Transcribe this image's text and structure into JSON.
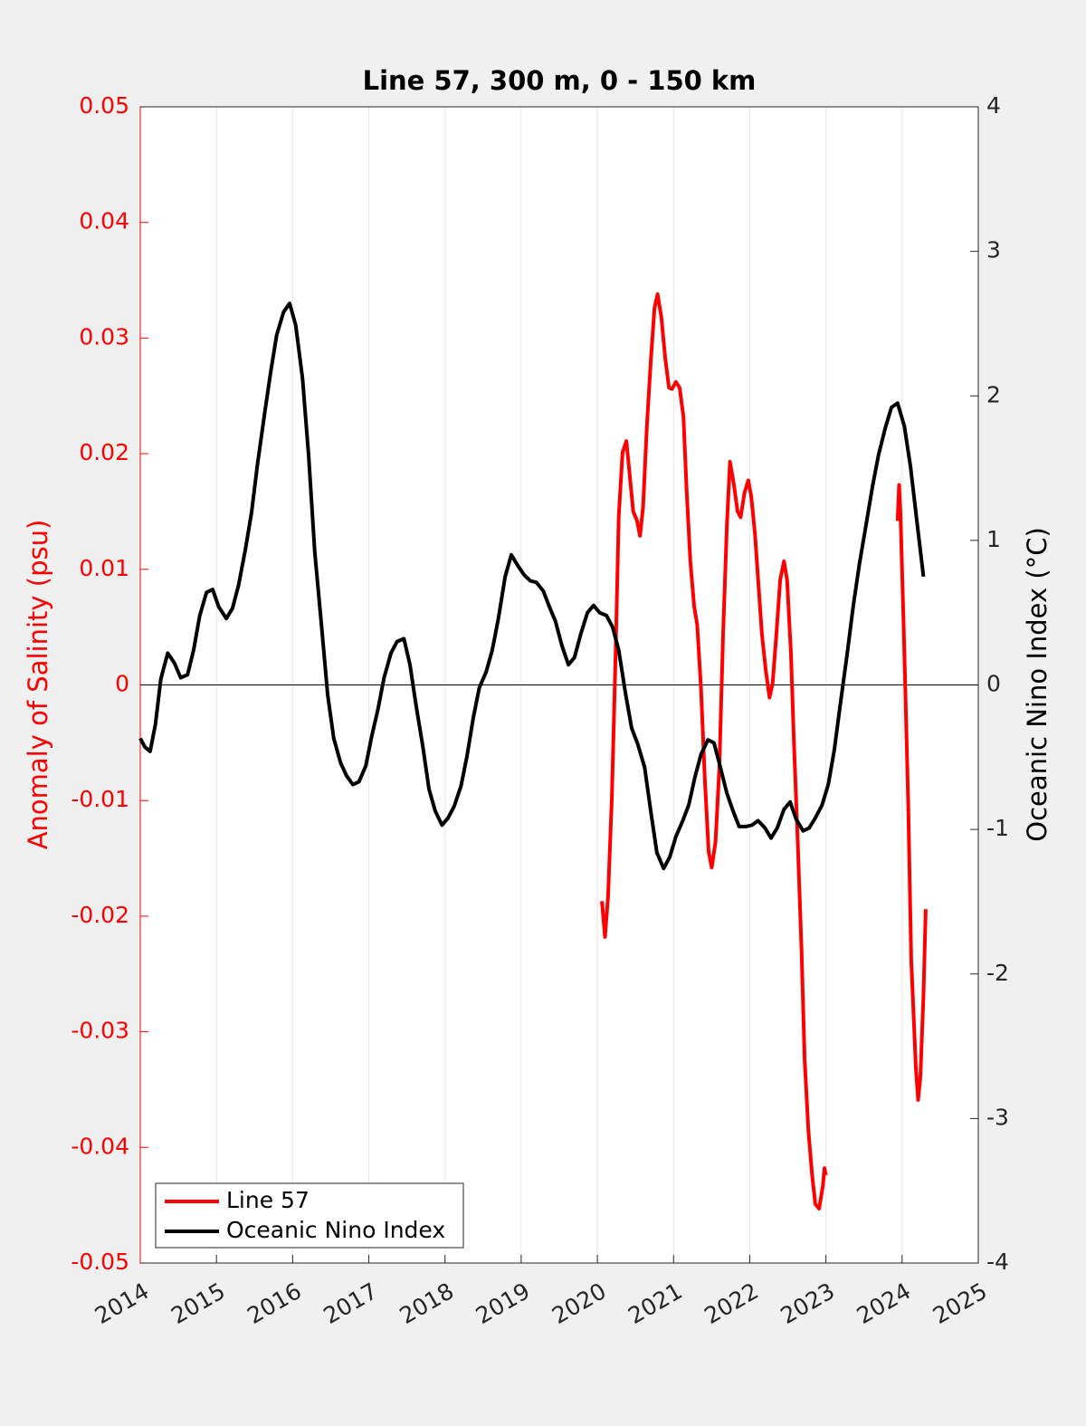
{
  "chart_data": {
    "type": "line",
    "title": "Line 57, 300 m, 0 - 150 km",
    "ylabel": "Anomaly of Salinity (psu)",
    "y2label": "Oceanic Nino Index (°C)",
    "yaxis_color": "#ff0000",
    "xlim": [
      2014,
      2025
    ],
    "xticks": [
      2014,
      2015,
      2016,
      2017,
      2018,
      2019,
      2020,
      2021,
      2022,
      2023,
      2024,
      2025
    ],
    "ylim": [
      -0.05,
      0.05
    ],
    "yticks": [
      -0.05,
      -0.04,
      -0.03,
      -0.02,
      -0.01,
      0,
      0.01,
      0.02,
      0.03,
      0.04,
      0.05
    ],
    "y2lim": [
      -4,
      4
    ],
    "y2ticks": [
      -4,
      -3,
      -2,
      -1,
      0,
      1,
      2,
      3,
      4
    ],
    "grid": "x",
    "zero_line": true,
    "legend": "lower left",
    "series": [
      {
        "name": "Line 57",
        "color": "#ff0000",
        "x": [
          2020.06,
          2020.1,
          2020.14,
          2020.19,
          2020.24,
          2020.28,
          2020.33,
          2020.38,
          2020.42,
          2020.47,
          2020.52,
          2020.56,
          2020.6,
          2020.65,
          2020.7,
          2020.75,
          2020.79,
          2020.84,
          2020.89,
          2020.94,
          2020.98,
          2021.03,
          2021.08,
          2021.13,
          2021.17,
          2021.22,
          2021.27,
          2021.31,
          2021.36,
          2021.41,
          2021.46,
          2021.5,
          2021.55,
          2021.6,
          2021.65,
          2021.7,
          2021.74,
          2021.79,
          2021.84,
          2021.88,
          2021.93,
          2021.98,
          2022.02,
          2022.07,
          2022.11,
          2022.16,
          2022.21,
          2022.26,
          2022.3,
          2022.35,
          2022.4,
          2022.45,
          2022.49,
          2022.54,
          2022.58,
          2022.63,
          2022.68,
          2022.72,
          2022.77,
          2022.82,
          2022.86,
          2022.91,
          2022.96,
          2022.98,
          2023.0,
          null,
          2023.94,
          2023.96,
          2023.98,
          2024.03,
          2024.08,
          2024.12,
          2024.18,
          2024.21,
          2024.24,
          2024.28,
          2024.31
        ],
        "values": [
          -0.0187,
          -0.0218,
          -0.0183,
          -0.0097,
          0.0029,
          0.0146,
          0.0201,
          0.0211,
          0.0185,
          0.015,
          0.0142,
          0.0129,
          0.0154,
          0.0224,
          0.0279,
          0.0326,
          0.0338,
          0.0318,
          0.0283,
          0.0257,
          0.0256,
          0.0262,
          0.0257,
          0.0232,
          0.017,
          0.0107,
          0.0068,
          0.0052,
          -0.0003,
          -0.0081,
          -0.0144,
          -0.0158,
          -0.0136,
          -0.0073,
          0.0044,
          0.0138,
          0.0193,
          0.0174,
          0.015,
          0.0145,
          0.0166,
          0.0177,
          0.0163,
          0.013,
          0.0091,
          0.0044,
          0.0013,
          -0.0011,
          0.0001,
          0.0044,
          0.0091,
          0.0107,
          0.0091,
          0.0029,
          -0.005,
          -0.0136,
          -0.023,
          -0.0324,
          -0.0386,
          -0.0425,
          -0.0449,
          -0.0453,
          -0.0433,
          -0.0418,
          -0.0424,
          null,
          0.0142,
          0.0173,
          0.0146,
          0.0029,
          -0.0104,
          -0.0238,
          -0.0331,
          -0.0359,
          -0.0339,
          -0.0269,
          -0.0194
        ]
      },
      {
        "name": "Oceanic Nino Index",
        "color": "#000000",
        "axis": "y2",
        "x": [
          2014.0,
          2014.06,
          2014.13,
          2014.2,
          2014.27,
          2014.36,
          2014.45,
          2014.53,
          2014.62,
          2014.7,
          2014.78,
          2014.87,
          2014.95,
          2015.03,
          2015.13,
          2015.21,
          2015.29,
          2015.38,
          2015.46,
          2015.54,
          2015.63,
          2015.71,
          2015.79,
          2015.88,
          2015.96,
          2016.04,
          2016.13,
          2016.21,
          2016.29,
          2016.38,
          2016.46,
          2016.54,
          2016.63,
          2016.71,
          2016.79,
          2016.87,
          2016.96,
          2017.04,
          2017.12,
          2017.2,
          2017.29,
          2017.37,
          2017.46,
          2017.54,
          2017.62,
          2017.71,
          2017.79,
          2017.87,
          2017.96,
          2018.04,
          2018.12,
          2018.21,
          2018.29,
          2018.37,
          2018.45,
          2018.54,
          2018.62,
          2018.7,
          2018.79,
          2018.87,
          2018.95,
          2019.04,
          2019.12,
          2019.2,
          2019.29,
          2019.37,
          2019.45,
          2019.53,
          2019.62,
          2019.7,
          2019.78,
          2019.87,
          2019.95,
          2020.03,
          2020.12,
          2020.2,
          2020.28,
          2020.37,
          2020.45,
          2020.53,
          2020.62,
          2020.7,
          2020.78,
          2020.87,
          2020.95,
          2021.03,
          2021.12,
          2021.2,
          2021.28,
          2021.36,
          2021.45,
          2021.53,
          2021.61,
          2021.7,
          2021.78,
          2021.86,
          2021.95,
          2022.03,
          2022.11,
          2022.2,
          2022.28,
          2022.36,
          2022.45,
          2022.53,
          2022.61,
          2022.7,
          2022.78,
          2022.86,
          2022.95,
          2023.03,
          2023.11,
          2023.19,
          2023.28,
          2023.36,
          2023.44,
          2023.53,
          2023.61,
          2023.69,
          2023.78,
          2023.86,
          2023.94,
          2024.03,
          2024.11,
          2024.19,
          2024.28
        ],
        "values": [
          -0.37,
          -0.43,
          -0.46,
          -0.27,
          0.04,
          0.22,
          0.15,
          0.05,
          0.07,
          0.24,
          0.48,
          0.64,
          0.66,
          0.54,
          0.46,
          0.53,
          0.69,
          0.94,
          1.19,
          1.53,
          1.87,
          2.16,
          2.42,
          2.58,
          2.64,
          2.49,
          2.12,
          1.59,
          0.92,
          0.4,
          -0.07,
          -0.37,
          -0.54,
          -0.63,
          -0.69,
          -0.67,
          -0.56,
          -0.35,
          -0.17,
          0.05,
          0.22,
          0.3,
          0.32,
          0.14,
          -0.14,
          -0.43,
          -0.72,
          -0.87,
          -0.97,
          -0.92,
          -0.84,
          -0.7,
          -0.49,
          -0.23,
          -0.02,
          0.09,
          0.24,
          0.46,
          0.75,
          0.9,
          0.83,
          0.76,
          0.72,
          0.71,
          0.65,
          0.54,
          0.44,
          0.28,
          0.14,
          0.19,
          0.35,
          0.5,
          0.55,
          0.5,
          0.48,
          0.4,
          0.24,
          -0.06,
          -0.3,
          -0.41,
          -0.57,
          -0.87,
          -1.16,
          -1.27,
          -1.19,
          -1.05,
          -0.94,
          -0.83,
          -0.64,
          -0.48,
          -0.38,
          -0.4,
          -0.56,
          -0.75,
          -0.87,
          -0.98,
          -0.98,
          -0.97,
          -0.94,
          -0.99,
          -1.06,
          -0.99,
          -0.86,
          -0.81,
          -0.93,
          -1.01,
          -0.99,
          -0.92,
          -0.83,
          -0.69,
          -0.45,
          -0.13,
          0.22,
          0.55,
          0.84,
          1.12,
          1.37,
          1.59,
          1.78,
          1.92,
          1.95,
          1.79,
          1.51,
          1.15,
          0.75
        ]
      }
    ]
  }
}
